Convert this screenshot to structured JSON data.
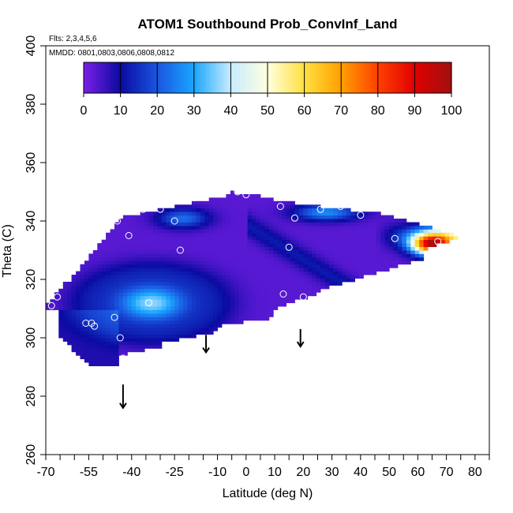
{
  "chart_data": {
    "type": "heatmap",
    "title": "ATOM1 Southbound Prob_ConvInf_Land",
    "subtitle_flights": "Flts: 2,3,4,5,6",
    "subtitle_dates": "MMDD: 0801,0803,0806,0808,0812",
    "xlabel": "Latitude (deg N)",
    "ylabel": "Theta (C)",
    "xlim": [
      -70,
      85
    ],
    "ylim": [
      260,
      400
    ],
    "x_tick_labels": [
      "-70",
      "-55",
      "-40",
      "-25",
      "-10",
      "0",
      "10",
      "20",
      "30",
      "40",
      "50",
      "60",
      "70",
      "80"
    ],
    "x_tick_values": [
      -70,
      -55,
      -40,
      -25,
      -10,
      0,
      10,
      20,
      30,
      40,
      50,
      60,
      70,
      80
    ],
    "y_tick_labels": [
      "260",
      "280",
      "300",
      "320",
      "340",
      "360",
      "380",
      "400"
    ],
    "y_tick_values": [
      260,
      280,
      300,
      320,
      340,
      360,
      380,
      400
    ],
    "colorbar": {
      "min": 0,
      "max": 100,
      "labels": [
        "0",
        "10",
        "20",
        "30",
        "40",
        "50",
        "60",
        "70",
        "80",
        "90",
        "100"
      ],
      "colors": [
        "#7a1fe8",
        "#0a0aa0",
        "#1a55e0",
        "#1aa6ff",
        "#c8ecff",
        "#ffffe0",
        "#ffe040",
        "#ffa000",
        "#ff4000",
        "#e00000",
        "#a01010"
      ]
    },
    "grid": false,
    "field_region_lat": [
      -70,
      76
    ],
    "field_region_theta": [
      289,
      351
    ],
    "circles": [
      {
        "lat": -68,
        "theta": 311
      },
      {
        "lat": -66,
        "theta": 314
      },
      {
        "lat": -56,
        "theta": 305
      },
      {
        "lat": -54,
        "theta": 305
      },
      {
        "lat": -53,
        "theta": 304
      },
      {
        "lat": -46,
        "theta": 307
      },
      {
        "lat": -44,
        "theta": 300
      },
      {
        "lat": -43,
        "theta": 293
      },
      {
        "lat": -45,
        "theta": 340
      },
      {
        "lat": -41,
        "theta": 335
      },
      {
        "lat": -36,
        "theta": 344
      },
      {
        "lat": -34,
        "theta": 312
      },
      {
        "lat": -30,
        "theta": 344
      },
      {
        "lat": -25,
        "theta": 340
      },
      {
        "lat": -23,
        "theta": 330
      },
      {
        "lat": -18,
        "theta": 348
      },
      {
        "lat": -3,
        "theta": 350
      },
      {
        "lat": 0,
        "theta": 349
      },
      {
        "lat": 12,
        "theta": 345
      },
      {
        "lat": 15,
        "theta": 331
      },
      {
        "lat": 13,
        "theta": 315
      },
      {
        "lat": 17,
        "theta": 341
      },
      {
        "lat": 20,
        "theta": 314
      },
      {
        "lat": 26,
        "theta": 344
      },
      {
        "lat": 33,
        "theta": 345
      },
      {
        "lat": 40,
        "theta": 342
      },
      {
        "lat": 52,
        "theta": 334
      },
      {
        "lat": 67,
        "theta": 333
      },
      {
        "lat": 76,
        "theta": 336
      }
    ],
    "arrows": [
      {
        "lat": -43,
        "theta_top": 284,
        "theta_bottom": 276
      },
      {
        "lat": -14,
        "theta_top": 301,
        "theta_bottom": 295
      },
      {
        "lat": 19,
        "theta_top": 303,
        "theta_bottom": 297
      }
    ]
  }
}
